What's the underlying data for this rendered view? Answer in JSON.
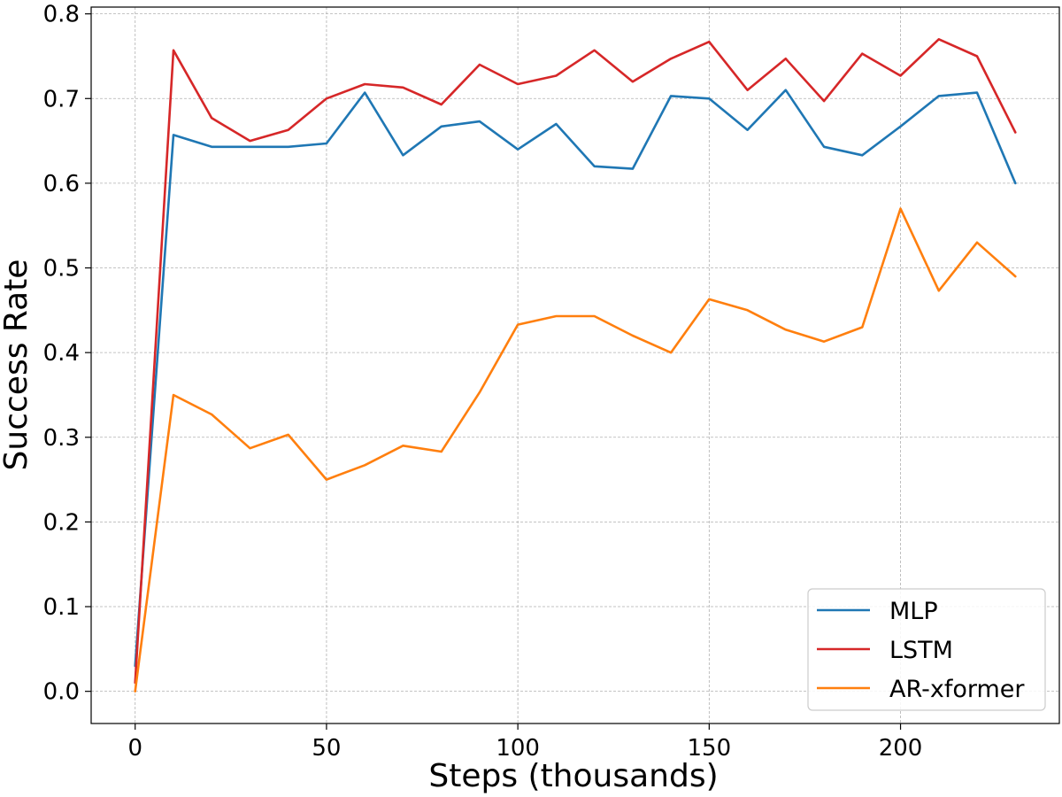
{
  "chart_data": {
    "type": "line",
    "title": "",
    "xlabel": "Steps (thousands)",
    "ylabel": "Success Rate",
    "xlim": [
      -11.5,
      241.5
    ],
    "ylim": [
      -0.038,
      0.808
    ],
    "xticks": [
      0,
      50,
      100,
      150,
      200
    ],
    "xtick_labels": [
      "0",
      "50",
      "100",
      "150",
      "200"
    ],
    "yticks": [
      0.0,
      0.1,
      0.2,
      0.3,
      0.4,
      0.5,
      0.6,
      0.7,
      0.8
    ],
    "ytick_labels": [
      "0.0",
      "0.1",
      "0.2",
      "0.3",
      "0.4",
      "0.5",
      "0.6",
      "0.7",
      "0.8"
    ],
    "grid": true,
    "legend_position": "bottom-right",
    "x": [
      0,
      10,
      20,
      30,
      40,
      50,
      60,
      70,
      80,
      90,
      100,
      110,
      120,
      130,
      140,
      150,
      160,
      170,
      180,
      190,
      200,
      210,
      220,
      230
    ],
    "series": [
      {
        "name": "MLP",
        "color": "#1f77b4",
        "values": [
          0.03,
          0.657,
          0.643,
          0.643,
          0.643,
          0.647,
          0.707,
          0.633,
          0.667,
          0.673,
          0.64,
          0.67,
          0.62,
          0.617,
          0.703,
          0.7,
          0.663,
          0.71,
          0.643,
          0.633,
          0.667,
          0.703,
          0.707,
          0.6
        ]
      },
      {
        "name": "LSTM",
        "color": "#d62728",
        "values": [
          0.01,
          0.757,
          0.677,
          0.65,
          0.663,
          0.7,
          0.717,
          0.713,
          0.693,
          0.74,
          0.717,
          0.727,
          0.757,
          0.72,
          0.747,
          0.767,
          0.71,
          0.747,
          0.697,
          0.753,
          0.727,
          0.77,
          0.75,
          0.66
        ]
      },
      {
        "name": "AR-xformer",
        "color": "#ff7f0e",
        "values": [
          0.0,
          0.35,
          0.327,
          0.287,
          0.303,
          0.25,
          0.267,
          0.29,
          0.283,
          0.353,
          0.433,
          0.443,
          0.443,
          0.42,
          0.4,
          0.463,
          0.45,
          0.427,
          0.413,
          0.43,
          0.57,
          0.473,
          0.53,
          0.49
        ]
      }
    ]
  }
}
